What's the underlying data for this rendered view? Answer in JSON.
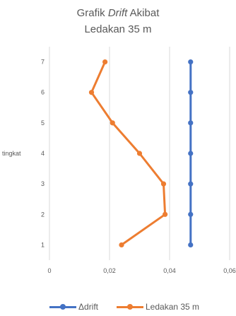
{
  "chart_data": {
    "type": "line",
    "title_line1_pre": "Grafik ",
    "title_line1_em": "Drift",
    "title_line1_post": " Akibat",
    "title_line2": "Ledakan 35 m",
    "ylabel": "tingkat",
    "xlim": [
      0,
      0.06
    ],
    "ylim": [
      0.5,
      7.5
    ],
    "x_ticks": [
      {
        "value": 0,
        "label": "0"
      },
      {
        "value": 0.02,
        "label": "0,02"
      },
      {
        "value": 0.04,
        "label": "0,04"
      },
      {
        "value": 0.06,
        "label": "0,06"
      }
    ],
    "y_ticks": [
      1,
      2,
      3,
      4,
      5,
      6,
      7
    ],
    "grid": "vertical",
    "legend_position": "bottom",
    "series": [
      {
        "name": "Δdrift",
        "color": "#4472c4",
        "points": [
          {
            "x": 0.047,
            "y": 1
          },
          {
            "x": 0.047,
            "y": 2
          },
          {
            "x": 0.047,
            "y": 3
          },
          {
            "x": 0.047,
            "y": 4
          },
          {
            "x": 0.047,
            "y": 5
          },
          {
            "x": 0.047,
            "y": 6
          },
          {
            "x": 0.047,
            "y": 7
          }
        ]
      },
      {
        "name": "Ledakan 35 m",
        "color": "#ed7d31",
        "points": [
          {
            "x": 0.024,
            "y": 1
          },
          {
            "x": 0.0385,
            "y": 2
          },
          {
            "x": 0.038,
            "y": 3
          },
          {
            "x": 0.03,
            "y": 4
          },
          {
            "x": 0.021,
            "y": 5
          },
          {
            "x": 0.014,
            "y": 6
          },
          {
            "x": 0.0185,
            "y": 7
          }
        ]
      }
    ]
  }
}
